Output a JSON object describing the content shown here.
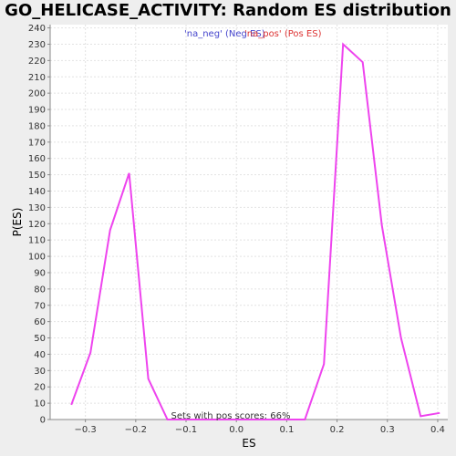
{
  "chart_data": {
    "type": "line",
    "title": "GO_HELICASE_ACTIVITY: Random ES distribution",
    "xlabel": "ES",
    "ylabel": "P(ES)",
    "xlim": [
      -0.37,
      0.42
    ],
    "ylim": [
      0,
      242
    ],
    "x_ticks": [
      -0.3,
      -0.2,
      -0.1,
      0.0,
      0.1,
      0.2,
      0.3,
      0.4
    ],
    "x_tick_labels": [
      "−0.3",
      "−0.2",
      "−0.1",
      "0.0",
      "0.1",
      "0.2",
      "0.3",
      "0.4"
    ],
    "y_ticks": [
      0,
      10,
      20,
      30,
      40,
      50,
      60,
      70,
      80,
      90,
      100,
      110,
      120,
      130,
      140,
      150,
      160,
      170,
      180,
      190,
      200,
      210,
      220,
      230,
      240
    ],
    "grid": true,
    "legend": [
      {
        "label": "'na_neg' (Neg ES)",
        "color": "#4444cc"
      },
      {
        "label": "'na_pos' (Pos ES)",
        "color": "#dd3333"
      }
    ],
    "legend_position": "top-center",
    "annotation": "Sets with pos scores: 66%",
    "series": [
      {
        "color": "#ee44ee",
        "x": [
          -0.328,
          -0.29,
          -0.251,
          -0.213,
          -0.175,
          -0.137,
          0.136,
          0.174,
          0.212,
          0.251,
          0.289,
          0.327,
          0.366,
          0.404
        ],
        "y": [
          9,
          41,
          116,
          151,
          25,
          0,
          0,
          34,
          230,
          219,
          119,
          50,
          2,
          4
        ]
      }
    ]
  }
}
